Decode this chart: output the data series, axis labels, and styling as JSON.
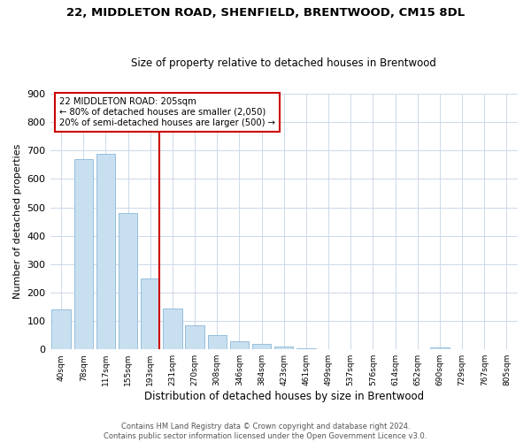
{
  "title": "22, MIDDLETON ROAD, SHENFIELD, BRENTWOOD, CM15 8DL",
  "subtitle": "Size of property relative to detached houses in Brentwood",
  "xlabel": "Distribution of detached houses by size in Brentwood",
  "ylabel": "Number of detached properties",
  "bar_labels": [
    "40sqm",
    "78sqm",
    "117sqm",
    "155sqm",
    "193sqm",
    "231sqm",
    "270sqm",
    "308sqm",
    "346sqm",
    "384sqm",
    "423sqm",
    "461sqm",
    "499sqm",
    "537sqm",
    "576sqm",
    "614sqm",
    "652sqm",
    "690sqm",
    "729sqm",
    "767sqm",
    "805sqm"
  ],
  "bar_values": [
    140,
    670,
    690,
    480,
    250,
    145,
    85,
    50,
    30,
    20,
    10,
    5,
    2,
    1,
    0,
    0,
    0,
    8,
    0,
    0,
    0
  ],
  "bar_color": "#c8dff0",
  "bar_edge_color": "#8ab8d8",
  "ylim": [
    0,
    900
  ],
  "yticks": [
    0,
    100,
    200,
    300,
    400,
    500,
    600,
    700,
    800,
    900
  ],
  "property_line_index": 4,
  "property_line_color": "#cc0000",
  "annotation_title": "22 MIDDLETON ROAD: 205sqm",
  "annotation_line1": "← 80% of detached houses are smaller (2,050)",
  "annotation_line2": "20% of semi-detached houses are larger (500) →",
  "annotation_box_color": "#cc0000",
  "footer_line1": "Contains HM Land Registry data © Crown copyright and database right 2024.",
  "footer_line2": "Contains public sector information licensed under the Open Government Licence v3.0.",
  "background_color": "#ffffff",
  "grid_color": "#ccd9e8"
}
